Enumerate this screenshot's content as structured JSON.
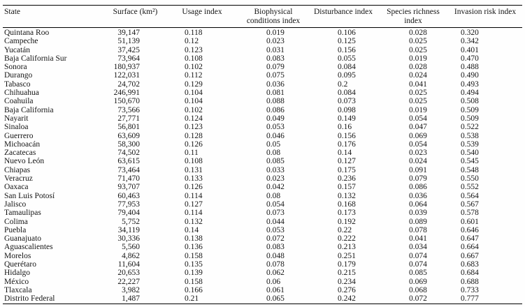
{
  "table": {
    "columns": [
      "State",
      "Surface (km²)",
      "Usage index",
      "Biophysical conditions index",
      "Disturbance index",
      "Species richness index",
      "Invasion risk index"
    ],
    "rows": [
      [
        "Quintana Roo",
        "39,147",
        "0.118",
        "0.019",
        "0.106",
        "0.028",
        "0.320"
      ],
      [
        "Campeche",
        "51,139",
        "0.12",
        "0.023",
        "0.125",
        "0.025",
        "0.342"
      ],
      [
        "Yucatán",
        "37,425",
        "0.123",
        "0.031",
        "0.156",
        "0.025",
        "0.401"
      ],
      [
        "Baja California Sur",
        "73,964",
        "0.108",
        "0.083",
        "0.055",
        "0.019",
        "0.470"
      ],
      [
        "Sonora",
        "180,937",
        "0.102",
        "0.079",
        "0.084",
        "0.028",
        "0.488"
      ],
      [
        "Durango",
        "122,031",
        "0.112",
        "0.075",
        "0.095",
        "0.024",
        "0.490"
      ],
      [
        "Tabasco",
        "24,702",
        "0.129",
        "0.036",
        "0.2",
        "0.041",
        "0.493"
      ],
      [
        "Chihuahua",
        "246,991",
        "0.104",
        "0.081",
        "0.084",
        "0.025",
        "0.494"
      ],
      [
        "Coahuila",
        "150,670",
        "0.104",
        "0.088",
        "0.073",
        "0.025",
        "0.508"
      ],
      [
        "Baja California",
        "73,566",
        "0.102",
        "0.086",
        "0.098",
        "0.019",
        "0.509"
      ],
      [
        "Nayarit",
        "27,771",
        "0.124",
        "0.049",
        "0.149",
        "0.054",
        "0.509"
      ],
      [
        "Sinaloa",
        "56,801",
        "0.123",
        "0.053",
        "0.16",
        "0.047",
        "0.522"
      ],
      [
        "Guerrero",
        "63,609",
        "0.128",
        "0.046",
        "0.156",
        "0.069",
        "0.538"
      ],
      [
        "Michoacán",
        "58,300",
        "0.126",
        "0.05",
        "0.176",
        "0.054",
        "0.539"
      ],
      [
        "Zacatecas",
        "74,502",
        "0.11",
        "0.08",
        "0.14",
        "0.023",
        "0.540"
      ],
      [
        "Nuevo León",
        "63,615",
        "0.108",
        "0.085",
        "0.127",
        "0.024",
        "0.545"
      ],
      [
        "Chiapas",
        "73,464",
        "0.131",
        "0.033",
        "0.175",
        "0.091",
        "0.548"
      ],
      [
        "Veracruz",
        "71,470",
        "0.133",
        "0.023",
        "0.236",
        "0.079",
        "0.550"
      ],
      [
        "Oaxaca",
        "93,707",
        "0.126",
        "0.042",
        "0.157",
        "0.086",
        "0.552"
      ],
      [
        "San Luis Potosí",
        "60,463",
        "0.114",
        "0.08",
        "0.132",
        "0.036",
        "0.564"
      ],
      [
        "Jalisco",
        "77,953",
        "0.127",
        "0.054",
        "0.168",
        "0.064",
        "0.567"
      ],
      [
        "Tamaulipas",
        "79,404",
        "0.114",
        "0.073",
        "0.173",
        "0.039",
        "0.578"
      ],
      [
        "Colima",
        "5,752",
        "0.132",
        "0.044",
        "0.192",
        "0.089",
        "0.601"
      ],
      [
        "Puebla",
        "34,119",
        "0.14",
        "0.053",
        "0.22",
        "0.078",
        "0.646"
      ],
      [
        "Guanajuato",
        "30,336",
        "0.138",
        "0.072",
        "0.222",
        "0.041",
        "0.647"
      ],
      [
        "Aguascalientes",
        "5,560",
        "0.136",
        "0.083",
        "0.213",
        "0.034",
        "0.664"
      ],
      [
        "Morelos",
        "4,862",
        "0.158",
        "0.048",
        "0.251",
        "0.074",
        "0.667"
      ],
      [
        "Querétaro",
        "11,604",
        "0.135",
        "0.078",
        "0.179",
        "0.074",
        "0.683"
      ],
      [
        "Hidalgo",
        "20,653",
        "0.139",
        "0.062",
        "0.215",
        "0.085",
        "0.684"
      ],
      [
        "México",
        "22,227",
        "0.158",
        "0.06",
        "0.234",
        "0.069",
        "0.688"
      ],
      [
        "Tlaxcala",
        "3,982",
        "0.166",
        "0.061",
        "0.276",
        "0.068",
        "0.733"
      ],
      [
        "Distrito Federal",
        "1,487",
        "0.21",
        "0.065",
        "0.242",
        "0.072",
        "0.777"
      ]
    ]
  }
}
